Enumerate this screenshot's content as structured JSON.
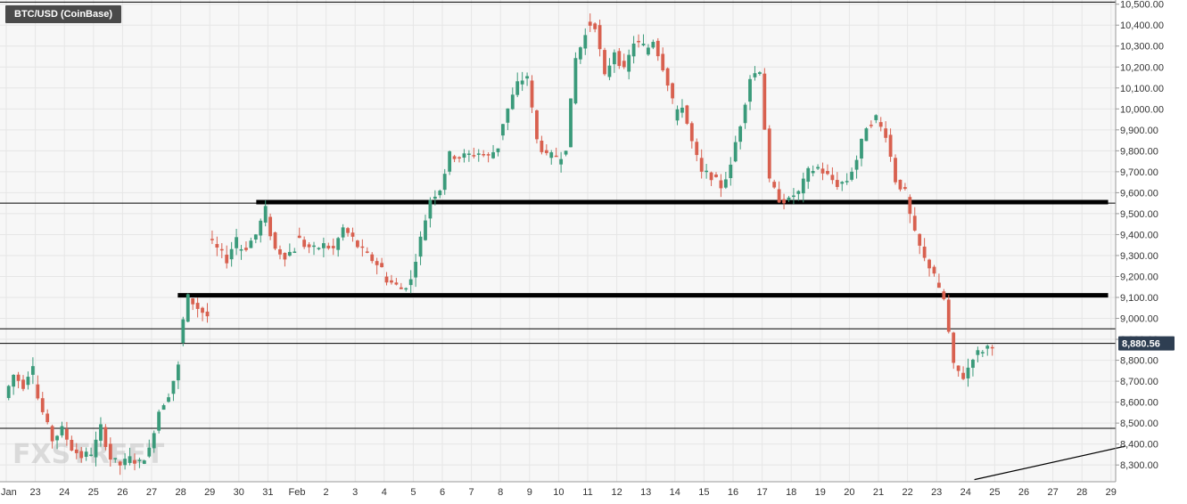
{
  "header": {
    "symbol_label": "BTC/USD (CoinBase)"
  },
  "watermark": {
    "text": "FXSTREET"
  },
  "colors": {
    "up": "#3a9a7a",
    "down": "#d8604f",
    "grid": "#e6e6e6",
    "level": "#000000",
    "price_tag_bg": "#2e3e52"
  },
  "chart_data": {
    "type": "candlestick",
    "title": "",
    "interval": "4h",
    "ylim": [
      8220,
      10520
    ],
    "y_ticks": [
      8300,
      8400,
      8500,
      8600,
      8700,
      8800,
      8900,
      9000,
      9100,
      9200,
      9300,
      9400,
      9500,
      9600,
      9700,
      9800,
      9900,
      10000,
      10100,
      10200,
      10300,
      10400,
      10500
    ],
    "y_tick_labels": [
      "8,300.00",
      "8,400.00",
      "8,500.00",
      "8,600.00",
      "8,700.00",
      "8,800.00",
      "8,900.00",
      "9,000.00",
      "9,100.00",
      "9,200.00",
      "9,300.00",
      "9,400.00",
      "9,500.00",
      "9,600.00",
      "9,700.00",
      "9,800.00",
      "9,900.00",
      "10,000.00",
      "10,100.00",
      "10,200.00",
      "10,300.00",
      "10,400.00",
      "10,500.00"
    ],
    "x_tick_labels": [
      "Jan",
      "23",
      "24",
      "25",
      "26",
      "27",
      "28",
      "29",
      "30",
      "31",
      "Feb",
      "2",
      "3",
      "4",
      "5",
      "6",
      "7",
      "8",
      "9",
      "10",
      "11",
      "12",
      "13",
      "14",
      "15",
      "16",
      "17",
      "18",
      "19",
      "20",
      "21",
      "22",
      "23",
      "24",
      "25",
      "26",
      "27",
      "28",
      "29"
    ],
    "last_price": 8880.56,
    "last_price_label": "8,880.56",
    "horizontal_lines": [
      {
        "value": 10510,
        "style": "thin"
      },
      {
        "value": 9550,
        "style": "thin"
      },
      {
        "value": 9555,
        "style": "thick",
        "from_day": 8.6,
        "to_day": 37.9
      },
      {
        "value": 9110,
        "style": "thick",
        "from_day": 5.9,
        "to_day": 37.9
      },
      {
        "value": 8950,
        "style": "thin"
      },
      {
        "value": 8880.56,
        "style": "thin"
      },
      {
        "value": 8475,
        "style": "thin"
      }
    ],
    "trend_line": {
      "from": [
        33.3,
        8230
      ],
      "to": [
        38.5,
        8390
      ]
    },
    "series": [
      {
        "day": 0,
        "points": [
          8620,
          8730,
          8680,
          8790
        ]
      },
      {
        "day": 1,
        "points": [
          8690,
          8550,
          8420,
          8470
        ]
      },
      {
        "day": 2,
        "points": [
          8470,
          8380,
          8340,
          8360
        ]
      },
      {
        "day": 3,
        "points": [
          8340,
          8480,
          8330,
          8300
        ]
      },
      {
        "day": 4,
        "points": [
          8300,
          8330,
          8310,
          8370
        ]
      },
      {
        "day": 5,
        "points": [
          8380,
          8560,
          8640,
          8770
        ]
      },
      {
        "day": 6,
        "points": [
          8880,
          9100,
          9050,
          9010
        ]
      },
      {
        "day": 7,
        "points": [
          9380,
          9330,
          9280,
          9390
        ]
      },
      {
        "day": 8,
        "points": [
          9330,
          9340,
          9400,
          9520
        ]
      },
      {
        "day": 9,
        "points": [
          9480,
          9330,
          9300,
          9330
        ]
      },
      {
        "day": 10,
        "points": [
          9400,
          9350,
          9330,
          9350
        ]
      },
      {
        "day": 11,
        "points": [
          9350,
          9330,
          9430,
          9380
        ]
      },
      {
        "day": 12,
        "points": [
          9370,
          9320,
          9280,
          9240
        ]
      },
      {
        "day": 13,
        "points": [
          9200,
          9170,
          9140,
          9180
        ]
      },
      {
        "day": 14,
        "points": [
          9200,
          9380,
          9570,
          9620
        ]
      },
      {
        "day": 15,
        "points": [
          9620,
          9780,
          9770,
          9780
        ]
      },
      {
        "day": 16,
        "points": [
          9780,
          9790,
          9770,
          9820
        ]
      },
      {
        "day": 17,
        "points": [
          9870,
          10000,
          10120,
          10160
        ]
      },
      {
        "day": 18,
        "points": [
          10140,
          9850,
          9770,
          9780
        ]
      },
      {
        "day": 19,
        "points": [
          9740,
          9820,
          10240,
          10350
        ]
      },
      {
        "day": 20,
        "points": [
          10410,
          10400,
          10150,
          10280
        ]
      },
      {
        "day": 21,
        "points": [
          10270,
          10180,
          10320,
          10300
        ]
      },
      {
        "day": 22,
        "points": [
          10260,
          10330,
          10200,
          10050
        ]
      },
      {
        "day": 23,
        "points": [
          9940,
          10020,
          9840,
          9690
        ]
      },
      {
        "day": 24,
        "points": [
          9700,
          9680,
          9630,
          9720
        ]
      },
      {
        "day": 25,
        "points": [
          9750,
          9930,
          10150,
          10190
        ]
      },
      {
        "day": 26,
        "points": [
          10170,
          9650,
          9570,
          9560
        ]
      },
      {
        "day": 27,
        "points": [
          9580,
          9600,
          9700,
          9720
        ]
      },
      {
        "day": 28,
        "points": [
          9720,
          9680,
          9640,
          9660
        ]
      },
      {
        "day": 29,
        "points": [
          9660,
          9760,
          9920,
          9960
        ]
      },
      {
        "day": 30,
        "points": [
          9940,
          9880,
          9660,
          9600
        ]
      },
      {
        "day": 31,
        "points": [
          9580,
          9400,
          9280,
          9220
        ]
      },
      {
        "day": 32,
        "points": [
          9170,
          9090,
          8770,
          8720
        ]
      },
      {
        "day": 33,
        "points": [
          8710,
          8820,
          8850,
          8880
        ]
      }
    ]
  }
}
